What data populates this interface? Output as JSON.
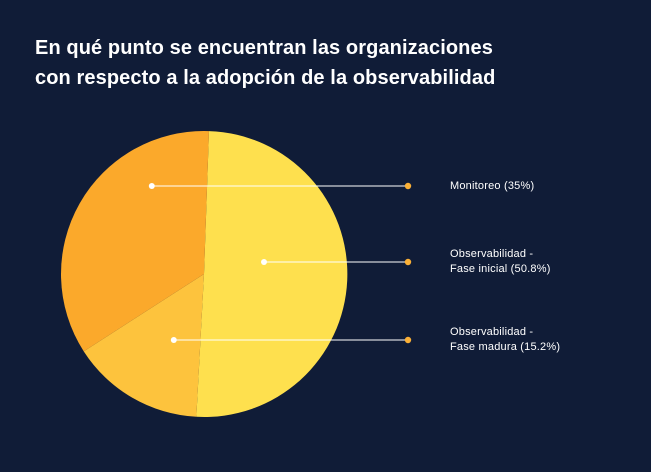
{
  "title_lines": [
    "En qué punto se encuentran las organizaciones",
    "con respecto a la adopción de la observabilidad"
  ],
  "colors": {
    "background": "#101c37",
    "Monitoreo": "#fba92b",
    "Observabilidad - Fase inicial": "#fee04e",
    "Observabilidad - Fase madura": "#fdc33d",
    "leader_line": "#ffffff",
    "dot": "#fbb036"
  },
  "chart_data": {
    "type": "pie",
    "title": "En qué punto se encuentran las organizaciones con respecto a la adopción de la observabilidad",
    "slices": [
      {
        "name": "Observabilidad - Fase inicial",
        "value": 50.8,
        "label_lines": [
          "Observabilidad -",
          "Fase inicial (50.8%)"
        ]
      },
      {
        "name": "Observabilidad - Fase madura",
        "value": 15.2,
        "label_lines": [
          "Observabilidad -",
          "Fase madura (15.2%)"
        ]
      },
      {
        "name": "Monitoreo",
        "value": 35,
        "label_lines": [
          "Monitoreo (35%)"
        ]
      }
    ],
    "legend": "right"
  }
}
